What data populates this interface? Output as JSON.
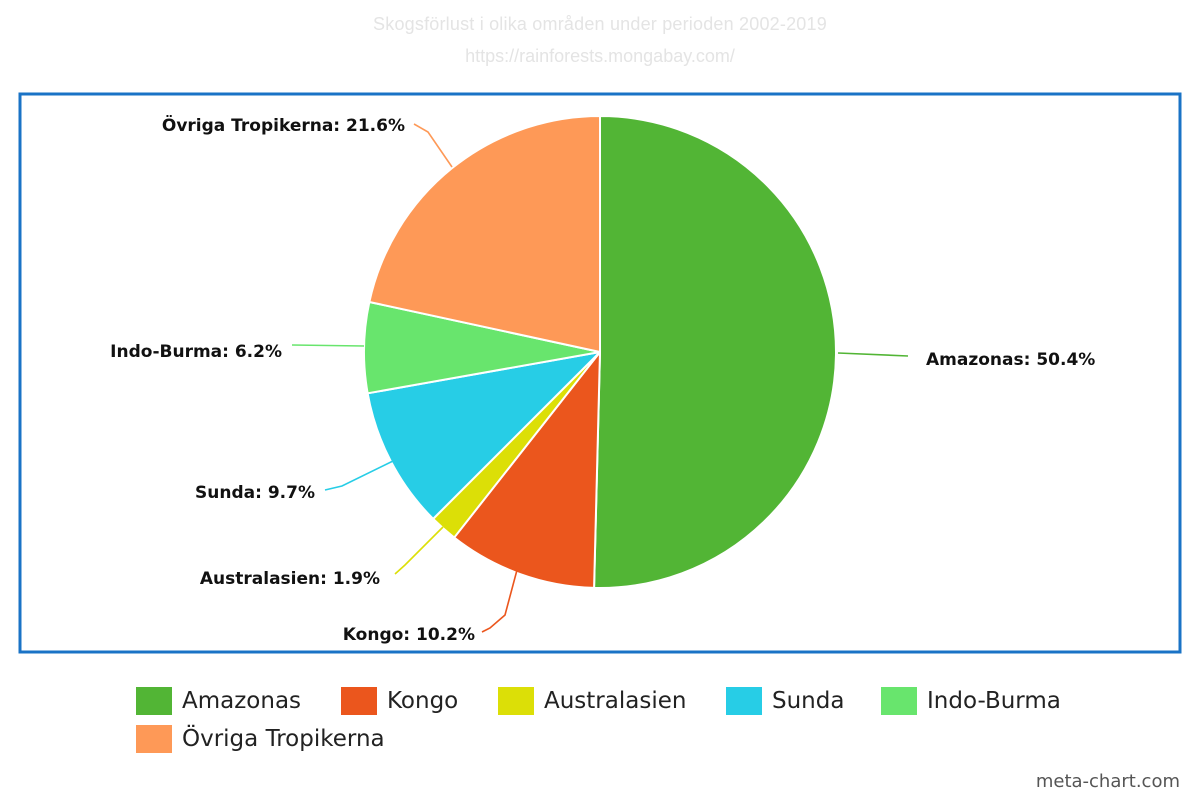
{
  "chart_data": {
    "type": "pie",
    "title": "Skogsförlust i olika områden under perioden 2002-2019",
    "subtitle": "https://rainforests.mongabay.com/",
    "unit": "%",
    "slices": [
      {
        "label": "Amazonas",
        "value": 50.4,
        "color": "#52b535",
        "data_label": "Amazonas: 50.4%"
      },
      {
        "label": "Kongo",
        "value": 10.2,
        "color": "#eb561d",
        "data_label": "Kongo: 10.2%"
      },
      {
        "label": "Australasien",
        "value": 1.9,
        "color": "#dcdf07",
        "data_label": "Australasien: 1.9%"
      },
      {
        "label": "Sunda",
        "value": 9.7,
        "color": "#27cde6",
        "data_label": "Sunda: 9.7%"
      },
      {
        "label": "Indo-Burma",
        "value": 6.2,
        "color": "#68e56d",
        "data_label": "Indo-Burma: 6.2%"
      },
      {
        "label": "Övriga Tropikerna",
        "value": 21.6,
        "color": "#fe9957",
        "data_label": "Övriga Tropikerna: 21.6%"
      }
    ],
    "legend": {
      "position": "bottom",
      "items": [
        "Amazonas",
        "Kongo",
        "Australasien",
        "Sunda",
        "Indo-Burma",
        "Övriga Tropikerna"
      ]
    },
    "frame_color": "#1a73c6"
  },
  "watermark": "meta-chart.com"
}
